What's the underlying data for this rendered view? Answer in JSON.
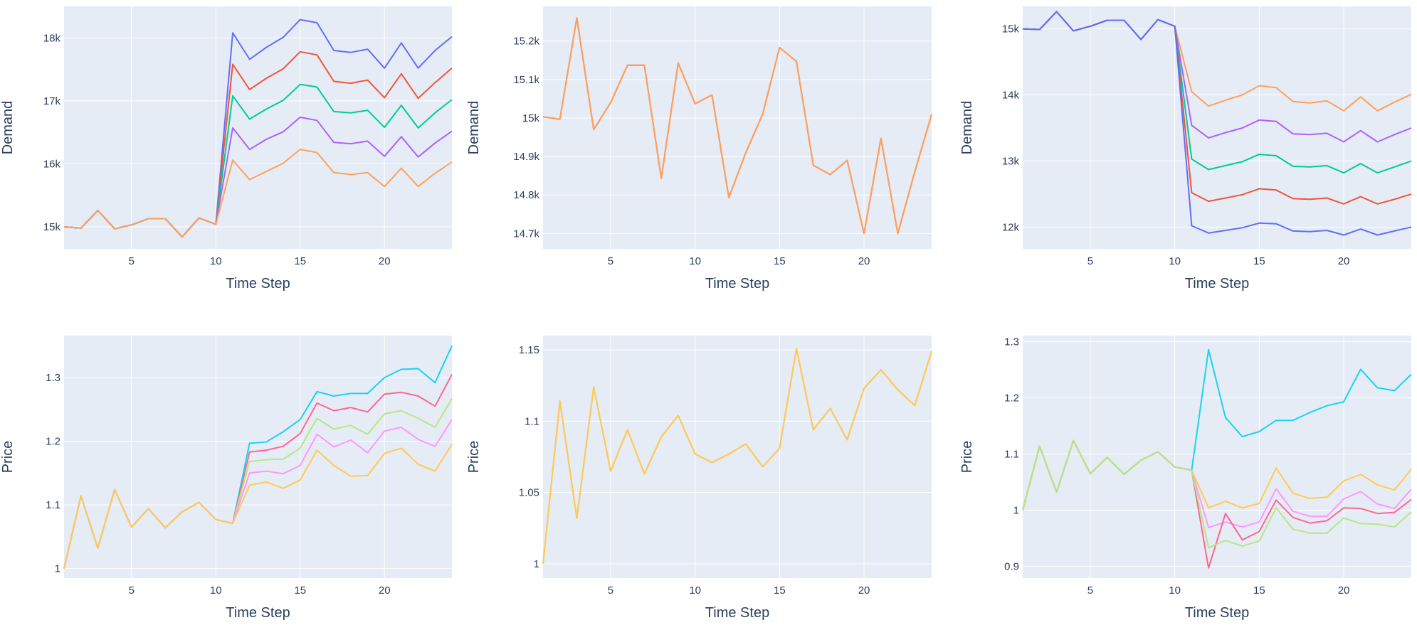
{
  "colors": {
    "plot_bg": "#E5ECF6",
    "grid": "#ffffff",
    "text": "#2a3f5f"
  },
  "chart_data": [
    {
      "type": "line",
      "xlabel": "Time Step",
      "ylabel": "Demand",
      "xlim": [
        1,
        24
      ],
      "ylim": [
        14650,
        18500
      ],
      "xticks": [
        5,
        10,
        15,
        20
      ],
      "yticks": [
        15000,
        16000,
        17000,
        18000
      ],
      "ytick_labels": [
        "15k",
        "16k",
        "17k",
        "18k"
      ],
      "x": [
        1,
        2,
        3,
        4,
        5,
        6,
        7,
        8,
        9,
        10,
        11,
        12,
        13,
        14,
        15,
        16,
        17,
        18,
        19,
        20,
        21,
        22,
        23,
        24
      ],
      "series": [
        {
          "color": "#636EFA",
          "values": [
            15000,
            14980,
            15260,
            14970,
            15030,
            15130,
            15130,
            14840,
            15140,
            15040,
            18080,
            17660,
            17850,
            18010,
            18290,
            18240,
            17800,
            17770,
            17820,
            17520,
            17920,
            17520,
            17800,
            18020
          ]
        },
        {
          "color": "#EF553B",
          "values": [
            15000,
            14980,
            15260,
            14970,
            15030,
            15130,
            15130,
            14840,
            15140,
            15040,
            17580,
            17180,
            17360,
            17510,
            17780,
            17730,
            17310,
            17280,
            17330,
            17050,
            17430,
            17040,
            17290,
            17520
          ]
        },
        {
          "color": "#00CC96",
          "values": [
            15000,
            14980,
            15260,
            14970,
            15030,
            15130,
            15130,
            14840,
            15140,
            15040,
            17080,
            16710,
            16870,
            17010,
            17260,
            17220,
            16830,
            16810,
            16850,
            16580,
            16930,
            16570,
            16810,
            17020
          ]
        },
        {
          "color": "#AB63FA",
          "values": [
            15000,
            14980,
            15260,
            14970,
            15030,
            15130,
            15130,
            14840,
            15140,
            15040,
            16570,
            16230,
            16390,
            16510,
            16740,
            16690,
            16340,
            16320,
            16360,
            16120,
            16430,
            16110,
            16330,
            16520
          ]
        },
        {
          "color": "#FFA15A",
          "values": [
            15000,
            14980,
            15260,
            14970,
            15030,
            15130,
            15130,
            14840,
            15140,
            15040,
            16060,
            15750,
            15880,
            16010,
            16230,
            16180,
            15860,
            15830,
            15860,
            15640,
            15930,
            15640,
            15850,
            16030
          ]
        }
      ]
    },
    {
      "type": "line",
      "xlabel": "Time Step",
      "ylabel": "Demand",
      "xlim": [
        1,
        24
      ],
      "ylim": [
        14660,
        15290
      ],
      "xticks": [
        5,
        10,
        15,
        20
      ],
      "yticks": [
        14700,
        14800,
        14900,
        15000,
        15100,
        15200
      ],
      "ytick_labels": [
        "14.7k",
        "14.8k",
        "14.9k",
        "15k",
        "15.1k",
        "15.2k"
      ],
      "x": [
        1,
        2,
        3,
        4,
        5,
        6,
        7,
        8,
        9,
        10,
        11,
        12,
        13,
        14,
        15,
        16,
        17,
        18,
        19,
        20,
        21,
        22,
        23,
        24
      ],
      "series": [
        {
          "color": "#EF553B",
          "values": [
            15003,
            14997,
            15260,
            14970,
            15040,
            15137,
            15137,
            14843,
            15143,
            15037,
            15060,
            14793,
            14910,
            15010,
            15183,
            15147,
            14877,
            14853,
            14890,
            14700,
            14947,
            14700,
            14860,
            15010
          ]
        },
        {
          "color": "#FFA15A",
          "values": [
            15003,
            14997,
            15260,
            14970,
            15040,
            15137,
            15137,
            14843,
            15143,
            15037,
            15060,
            14793,
            14910,
            15010,
            15183,
            15147,
            14877,
            14853,
            14890,
            14700,
            14947,
            14700,
            14860,
            15010
          ]
        }
      ]
    },
    {
      "type": "line",
      "xlabel": "Time Step",
      "ylabel": "Demand",
      "xlim": [
        1,
        24
      ],
      "ylim": [
        11670,
        15340
      ],
      "xticks": [
        5,
        10,
        15,
        20
      ],
      "yticks": [
        12000,
        13000,
        14000,
        15000
      ],
      "ytick_labels": [
        "12k",
        "13k",
        "14k",
        "15k"
      ],
      "x": [
        1,
        2,
        3,
        4,
        5,
        6,
        7,
        8,
        9,
        10,
        11,
        12,
        13,
        14,
        15,
        16,
        17,
        18,
        19,
        20,
        21,
        22,
        23,
        24
      ],
      "series": [
        {
          "color": "#FFA15A",
          "values": [
            15000,
            14990,
            15260,
            14970,
            15040,
            15130,
            15130,
            14840,
            15140,
            15040,
            14050,
            13830,
            13920,
            14000,
            14140,
            14110,
            13900,
            13880,
            13910,
            13760,
            13970,
            13760,
            13890,
            14010
          ]
        },
        {
          "color": "#AB63FA",
          "values": [
            15000,
            14990,
            15260,
            14970,
            15040,
            15130,
            15130,
            14840,
            15140,
            15040,
            13540,
            13350,
            13430,
            13500,
            13620,
            13600,
            13410,
            13400,
            13420,
            13290,
            13460,
            13290,
            13400,
            13500
          ]
        },
        {
          "color": "#00CC96",
          "values": [
            15000,
            14990,
            15260,
            14970,
            15040,
            15130,
            15130,
            14840,
            15140,
            15040,
            13030,
            12870,
            12930,
            12990,
            13100,
            13080,
            12920,
            12910,
            12930,
            12820,
            12960,
            12820,
            12910,
            13000
          ]
        },
        {
          "color": "#EF553B",
          "values": [
            15000,
            14990,
            15260,
            14970,
            15040,
            15130,
            15130,
            14840,
            15140,
            15040,
            12520,
            12390,
            12440,
            12490,
            12580,
            12560,
            12430,
            12420,
            12440,
            12350,
            12460,
            12350,
            12420,
            12500
          ]
        },
        {
          "color": "#636EFA",
          "values": [
            15000,
            14990,
            15260,
            14970,
            15040,
            15130,
            15130,
            14840,
            15140,
            15040,
            12020,
            11910,
            11950,
            11990,
            12060,
            12050,
            11940,
            11930,
            11950,
            11880,
            11970,
            11880,
            11940,
            12000
          ]
        }
      ]
    },
    {
      "type": "line",
      "xlabel": "Time Step",
      "ylabel": "Price",
      "xlim": [
        1,
        24
      ],
      "ylim": [
        0.985,
        1.366
      ],
      "xticks": [
        5,
        10,
        15,
        20
      ],
      "yticks": [
        1.0,
        1.1,
        1.2,
        1.3
      ],
      "ytick_labels": [
        "1",
        "1.1",
        "1.2",
        "1.3"
      ],
      "x": [
        1,
        2,
        3,
        4,
        5,
        6,
        7,
        8,
        9,
        10,
        11,
        12,
        13,
        14,
        15,
        16,
        17,
        18,
        19,
        20,
        21,
        22,
        23,
        24
      ],
      "series": [
        {
          "color": "#19D3F3",
          "values": [
            1.0,
            1.114,
            1.032,
            1.124,
            1.065,
            1.094,
            1.064,
            1.089,
            1.104,
            1.077,
            1.071,
            1.197,
            1.199,
            1.215,
            1.234,
            1.278,
            1.271,
            1.275,
            1.275,
            1.3,
            1.313,
            1.314,
            1.292,
            1.35
          ]
        },
        {
          "color": "#FF6692",
          "values": [
            1.0,
            1.114,
            1.032,
            1.124,
            1.065,
            1.094,
            1.064,
            1.089,
            1.104,
            1.077,
            1.071,
            1.183,
            1.186,
            1.192,
            1.212,
            1.26,
            1.248,
            1.253,
            1.246,
            1.274,
            1.277,
            1.271,
            1.255,
            1.305
          ]
        },
        {
          "color": "#B6E880",
          "values": [
            1.0,
            1.114,
            1.032,
            1.124,
            1.065,
            1.094,
            1.064,
            1.089,
            1.104,
            1.077,
            1.071,
            1.168,
            1.171,
            1.172,
            1.189,
            1.236,
            1.219,
            1.225,
            1.211,
            1.243,
            1.248,
            1.236,
            1.222,
            1.267
          ]
        },
        {
          "color": "#FF97FF",
          "values": [
            1.0,
            1.114,
            1.032,
            1.124,
            1.065,
            1.094,
            1.064,
            1.089,
            1.104,
            1.077,
            1.071,
            1.15,
            1.153,
            1.149,
            1.162,
            1.211,
            1.191,
            1.202,
            1.182,
            1.216,
            1.222,
            1.203,
            1.192,
            1.234
          ]
        },
        {
          "color": "#FECB52",
          "values": [
            1.0,
            1.114,
            1.032,
            1.124,
            1.065,
            1.094,
            1.064,
            1.089,
            1.104,
            1.077,
            1.071,
            1.131,
            1.136,
            1.126,
            1.139,
            1.186,
            1.162,
            1.145,
            1.146,
            1.181,
            1.189,
            1.164,
            1.153,
            1.195
          ]
        }
      ]
    },
    {
      "type": "line",
      "xlabel": "Time Step",
      "ylabel": "Price",
      "xlim": [
        1,
        24
      ],
      "ylim": [
        0.99,
        1.16
      ],
      "xticks": [
        5,
        10,
        15,
        20
      ],
      "yticks": [
        1.0,
        1.05,
        1.1,
        1.15
      ],
      "ytick_labels": [
        "1",
        "1.05",
        "1.1",
        "1.15"
      ],
      "x": [
        1,
        2,
        3,
        4,
        5,
        6,
        7,
        8,
        9,
        10,
        11,
        12,
        13,
        14,
        15,
        16,
        17,
        18,
        19,
        20,
        21,
        22,
        23,
        24
      ],
      "series": [
        {
          "color": "#FFA15A",
          "values": [
            1.0,
            1.114,
            1.032,
            1.124,
            1.065,
            1.094,
            1.063,
            1.089,
            1.104,
            1.077,
            1.071,
            1.077,
            1.084,
            1.068,
            1.081,
            1.151,
            1.094,
            1.109,
            1.087,
            1.123,
            1.136,
            1.122,
            1.111,
            1.149
          ]
        },
        {
          "color": "#FECB52",
          "values": [
            1.0,
            1.114,
            1.032,
            1.124,
            1.065,
            1.094,
            1.063,
            1.089,
            1.104,
            1.077,
            1.071,
            1.077,
            1.084,
            1.068,
            1.081,
            1.151,
            1.094,
            1.109,
            1.087,
            1.123,
            1.136,
            1.122,
            1.111,
            1.149
          ]
        }
      ]
    },
    {
      "type": "line",
      "xlabel": "Time Step",
      "ylabel": "Price",
      "xlim": [
        1,
        24
      ],
      "ylim": [
        0.879,
        1.311
      ],
      "xticks": [
        5,
        10,
        15,
        20
      ],
      "yticks": [
        0.9,
        1.0,
        1.1,
        1.2,
        1.3
      ],
      "ytick_labels": [
        "0.9",
        "1",
        "1.1",
        "1.2",
        "1.3"
      ],
      "x": [
        1,
        2,
        3,
        4,
        5,
        6,
        7,
        8,
        9,
        10,
        11,
        12,
        13,
        14,
        15,
        16,
        17,
        18,
        19,
        20,
        21,
        22,
        23,
        24
      ],
      "series": [
        {
          "color": "#19D3F3",
          "values": [
            1.0,
            1.114,
            1.032,
            1.124,
            1.065,
            1.094,
            1.064,
            1.089,
            1.104,
            1.077,
            1.071,
            1.286,
            1.165,
            1.131,
            1.14,
            1.16,
            1.16,
            1.174,
            1.186,
            1.193,
            1.251,
            1.218,
            1.213,
            1.242
          ]
        },
        {
          "color": "#FECB52",
          "values": [
            1.0,
            1.114,
            1.032,
            1.124,
            1.065,
            1.094,
            1.064,
            1.089,
            1.104,
            1.077,
            1.071,
            1.004,
            1.016,
            1.004,
            1.012,
            1.075,
            1.03,
            1.021,
            1.023,
            1.052,
            1.064,
            1.045,
            1.036,
            1.073
          ]
        },
        {
          "color": "#FF97FF",
          "values": [
            1.0,
            1.114,
            1.032,
            1.124,
            1.065,
            1.094,
            1.064,
            1.089,
            1.104,
            1.077,
            1.071,
            0.969,
            0.979,
            0.97,
            0.979,
            1.038,
            0.998,
            0.989,
            0.989,
            1.02,
            1.033,
            1.011,
            1.003,
            1.037
          ]
        },
        {
          "color": "#FF6692",
          "values": [
            1.0,
            1.114,
            1.032,
            1.124,
            1.065,
            1.094,
            1.064,
            1.089,
            1.104,
            1.077,
            1.071,
            0.897,
            0.994,
            0.947,
            0.962,
            1.018,
            0.987,
            0.977,
            0.981,
            1.004,
            1.003,
            0.994,
            0.996,
            1.019
          ]
        },
        {
          "color": "#B6E880",
          "values": [
            1.0,
            1.114,
            1.032,
            1.124,
            1.065,
            1.094,
            1.064,
            1.089,
            1.104,
            1.077,
            1.071,
            0.933,
            0.946,
            0.936,
            0.945,
            1.004,
            0.966,
            0.959,
            0.959,
            0.986,
            0.976,
            0.975,
            0.97,
            0.997
          ]
        }
      ]
    }
  ]
}
